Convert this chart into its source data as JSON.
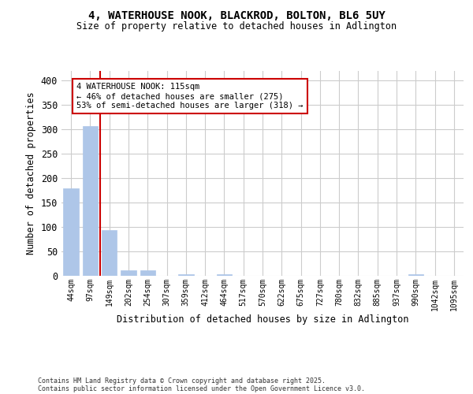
{
  "title_line1": "4, WATERHOUSE NOOK, BLACKROD, BOLTON, BL6 5UY",
  "title_line2": "Size of property relative to detached houses in Adlington",
  "xlabel": "Distribution of detached houses by size in Adlington",
  "ylabel": "Number of detached properties",
  "categories": [
    "44sqm",
    "97sqm",
    "149sqm",
    "202sqm",
    "254sqm",
    "307sqm",
    "359sqm",
    "412sqm",
    "464sqm",
    "517sqm",
    "570sqm",
    "622sqm",
    "675sqm",
    "727sqm",
    "780sqm",
    "832sqm",
    "885sqm",
    "937sqm",
    "990sqm",
    "1042sqm",
    "1095sqm"
  ],
  "values": [
    180,
    307,
    93,
    11,
    11,
    0,
    3,
    0,
    3,
    0,
    0,
    0,
    0,
    0,
    0,
    0,
    0,
    0,
    3,
    0,
    0
  ],
  "bar_color": "#aec6e8",
  "bar_edge_color": "#aec6e8",
  "vline_x": 1.5,
  "vline_color": "#cc0000",
  "annotation_text": "4 WATERHOUSE NOOK: 115sqm\n← 46% of detached houses are smaller (275)\n53% of semi-detached houses are larger (318) →",
  "annotation_box_color": "#ffffff",
  "annotation_edge_color": "#cc0000",
  "ylim": [
    0,
    420
  ],
  "yticks": [
    0,
    50,
    100,
    150,
    200,
    250,
    300,
    350,
    400
  ],
  "background_color": "#ffffff",
  "grid_color": "#cccccc",
  "footer_line1": "Contains HM Land Registry data © Crown copyright and database right 2025.",
  "footer_line2": "Contains public sector information licensed under the Open Government Licence v3.0."
}
